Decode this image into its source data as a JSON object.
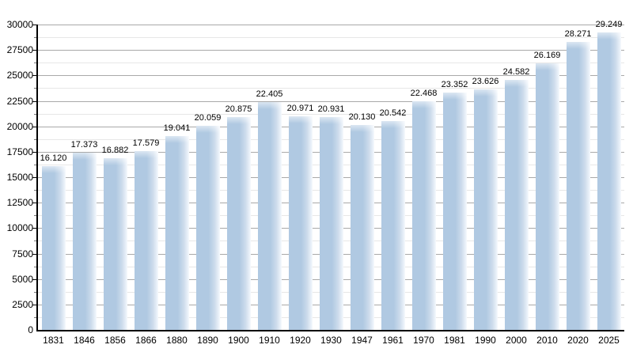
{
  "chart_data": {
    "type": "bar",
    "title": "",
    "xlabel": "",
    "ylabel": "",
    "categories": [
      "1831",
      "1846",
      "1856",
      "1866",
      "1880",
      "1890",
      "1900",
      "1910",
      "1920",
      "1930",
      "1947",
      "1961",
      "1970",
      "1981",
      "1990",
      "2000",
      "2010",
      "2020",
      "2025"
    ],
    "values": [
      16120,
      17373,
      16882,
      17579,
      19041,
      20059,
      20875,
      22405,
      20971,
      20931,
      20130,
      20542,
      22468,
      23352,
      23626,
      24582,
      26169,
      28271,
      29249
    ],
    "value_labels": [
      "16.120",
      "17.373",
      "16.882",
      "17.579",
      "19.041",
      "20.059",
      "20.875",
      "22.405",
      "20.971",
      "20.931",
      "20.130",
      "20.542",
      "22.468",
      "23.352",
      "23.626",
      "24.582",
      "26.169",
      "28.271",
      "29.249"
    ],
    "ylim": [
      0,
      30000
    ],
    "y_major_step": 2500,
    "y_minor_step": 1250,
    "y_tick_labels": [
      "0",
      "2500",
      "5000",
      "7500",
      "10000",
      "12500",
      "15000",
      "17500",
      "20000",
      "22500",
      "25000",
      "27500",
      "30000"
    ],
    "grid": true,
    "legend_position": "none",
    "colors": {
      "bar_fill": "#b0c9e2",
      "bar_fade_right": "#f7fafd",
      "bar_top_highlight": "#d8e4f0",
      "grid_major": "#a9a9a9",
      "grid_minor": "#e7e7e7",
      "axis": "#000000",
      "text": "#000000",
      "background": "#ffffff"
    }
  }
}
